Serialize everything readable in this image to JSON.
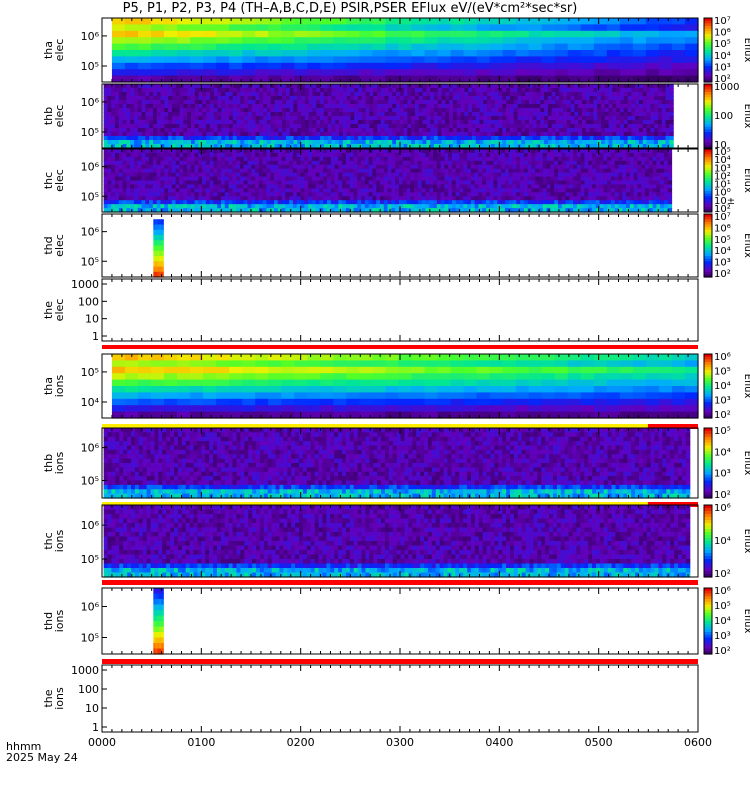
{
  "title": "P5, P1, P2, P3, P4 (TH–A,B,C,D,E) PSIR,PSER EFlux eV/(eV*cm²*sec*sr)",
  "footer": {
    "line1": "hhmm",
    "line2": "2025 May 24"
  },
  "colors": {
    "flag_red": "#ff0000",
    "flag_yellow": "#ffee00",
    "background": "#ffffff"
  },
  "chart_data": {
    "type": "heatmap",
    "x_ticks": [
      "0000",
      "0100",
      "0200",
      "0300",
      "0400",
      "0500",
      "0600"
    ],
    "x_range": [
      "0000",
      "0600"
    ],
    "panels": [
      {
        "id": "tha-elec",
        "label": [
          "tha",
          "elec"
        ],
        "y_ticks": [
          "10⁵",
          "10⁶"
        ],
        "colorbar_ticks": [
          "10²",
          "10³",
          "10⁴",
          "10⁵",
          "10⁶",
          "10⁷"
        ],
        "colorbar_label": "Eflux",
        "coverage": [
          "0006",
          "0600"
        ],
        "pattern": "gradient",
        "fade": 0.55
      },
      {
        "id": "thb-elec",
        "label": [
          "thb",
          "elec"
        ],
        "y_ticks": [
          "10⁵",
          "10⁶"
        ],
        "colorbar_ticks": [
          "10",
          "100",
          "1000"
        ],
        "colorbar_label": "Eflux",
        "coverage": [
          "0001",
          "0545"
        ],
        "pattern": "noise"
      },
      {
        "id": "thc-elec",
        "label": [
          "thc",
          "elec"
        ],
        "y_ticks": [
          "10⁵",
          "10⁶"
        ],
        "colorbar_ticks": [
          "10²",
          "10±",
          "10⁰",
          "10¹",
          "10²",
          "10³",
          "10⁴",
          "10⁵"
        ],
        "colorbar_label": "Eflux",
        "coverage": [
          "0001",
          "0544"
        ],
        "pattern": "noise"
      },
      {
        "id": "thd-elec",
        "label": [
          "thd",
          "elec"
        ],
        "y_ticks": [
          "10⁵",
          "10⁶"
        ],
        "colorbar_ticks": [
          "10²",
          "10³",
          "10⁴",
          "10⁵",
          "10⁶",
          "10⁷"
        ],
        "colorbar_label": "Eflux",
        "coverage": [
          "0031",
          "0037"
        ],
        "pattern": "block"
      },
      {
        "id": "the-elec",
        "label": [
          "the",
          "elec"
        ],
        "y_ticks": [
          "1",
          "10",
          "100",
          "1000"
        ],
        "colorbar_ticks": [],
        "colorbar_label": "",
        "coverage": [],
        "pattern": "empty"
      },
      {
        "id": "tha-ions",
        "label": [
          "tha",
          "ions"
        ],
        "y_ticks": [
          "10⁴",
          "10⁵"
        ],
        "colorbar_ticks": [
          "10²",
          "10³",
          "10⁴",
          "10⁵",
          "10⁶"
        ],
        "colorbar_label": "Eflux",
        "coverage": [
          "0006",
          "0600"
        ],
        "pattern": "gradient",
        "fade": 0.35
      },
      {
        "id": "thb-ions",
        "label": [
          "thb",
          "ions"
        ],
        "y_ticks": [
          "10⁵",
          "10⁶"
        ],
        "colorbar_ticks": [
          "10²",
          "10³",
          "10⁴",
          "10⁵"
        ],
        "colorbar_label": "Eflux",
        "coverage": [
          "0001",
          "0555"
        ],
        "pattern": "noise"
      },
      {
        "id": "thc-ions",
        "label": [
          "thc",
          "ions"
        ],
        "y_ticks": [
          "10⁵",
          "10⁶"
        ],
        "colorbar_ticks": [
          "10²",
          "10⁴",
          "10⁶"
        ],
        "colorbar_label": "Eflux",
        "coverage": [
          "0001",
          "0555"
        ],
        "pattern": "noise"
      },
      {
        "id": "thd-ions",
        "label": [
          "thd",
          "ions"
        ],
        "y_ticks": [
          "10⁵",
          "10⁶"
        ],
        "colorbar_ticks": [
          "10²",
          "10³",
          "10⁴",
          "10⁵",
          "10⁶"
        ],
        "colorbar_label": "Eflux",
        "coverage": [
          "0031",
          "0037"
        ],
        "pattern": "block"
      },
      {
        "id": "the-ions",
        "label": [
          "the",
          "ions"
        ],
        "y_ticks": [
          "1",
          "10",
          "100",
          "1000"
        ],
        "colorbar_ticks": [],
        "colorbar_label": "",
        "coverage": [],
        "pattern": "empty"
      }
    ]
  }
}
